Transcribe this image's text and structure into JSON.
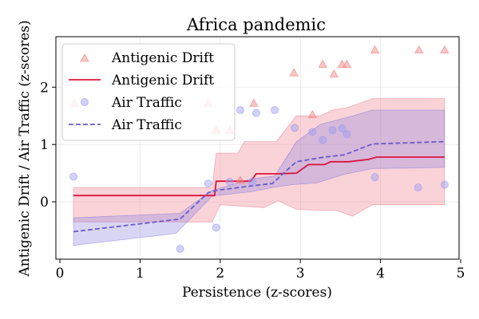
{
  "chart_data": {
    "type": "scatter",
    "title": "Africa pandemic",
    "xlabel": "Persistence (z-scores)",
    "ylabel": "Antigenic Drift / Air Traffic (z-scores)",
    "xlim": [
      -0.05,
      4.98
    ],
    "ylim": [
      -1.0,
      2.88
    ],
    "xticks": [
      "0",
      "1",
      "2",
      "3",
      "4",
      "5"
    ],
    "yticks": [
      "0",
      "1",
      "2"
    ],
    "grid": true,
    "legend_position": "top-left",
    "legend": [
      "Antigenic Drift",
      "Antigenic Drift",
      "Air Traffic",
      "Air Traffic"
    ],
    "colors": {
      "drift": "#dc143c",
      "traffic": "#6a5acd"
    },
    "series": [
      {
        "name": "Antigenic Drift",
        "kind": "scatter",
        "marker": "triangle",
        "color": "#f08080",
        "points": [
          [
            0.18,
            1.72
          ],
          [
            1.85,
            1.72
          ],
          [
            1.95,
            1.25
          ],
          [
            2.12,
            1.25
          ],
          [
            2.25,
            0.38
          ],
          [
            2.42,
            1.72
          ],
          [
            2.92,
            2.25
          ],
          [
            3.15,
            1.52
          ],
          [
            3.28,
            2.4
          ],
          [
            3.42,
            2.23
          ],
          [
            3.52,
            2.4
          ],
          [
            3.58,
            2.4
          ],
          [
            3.93,
            2.65
          ],
          [
            4.48,
            2.65
          ],
          [
            4.8,
            2.65
          ]
        ]
      },
      {
        "name": "Antigenic Drift",
        "kind": "line",
        "style": "solid",
        "color": "#dc143c",
        "points": [
          [
            0.17,
            0.11
          ],
          [
            1.93,
            0.11
          ],
          [
            1.95,
            0.36
          ],
          [
            2.38,
            0.36
          ],
          [
            2.45,
            0.49
          ],
          [
            2.72,
            0.49
          ],
          [
            2.95,
            0.5
          ],
          [
            3.1,
            0.65
          ],
          [
            3.3,
            0.65
          ],
          [
            3.38,
            0.7
          ],
          [
            3.6,
            0.7
          ],
          [
            3.85,
            0.74
          ],
          [
            3.95,
            0.78
          ],
          [
            4.8,
            0.78
          ]
        ],
        "band_upper": [
          [
            0.17,
            0.25
          ],
          [
            1.9,
            0.25
          ],
          [
            1.95,
            0.85
          ],
          [
            2.22,
            0.85
          ],
          [
            2.3,
            1.05
          ],
          [
            2.7,
            1.05
          ],
          [
            2.95,
            1.5
          ],
          [
            3.25,
            1.5
          ],
          [
            3.4,
            1.6
          ],
          [
            3.6,
            1.65
          ],
          [
            3.9,
            1.8
          ],
          [
            4.8,
            1.8
          ]
        ],
        "band_lower": [
          [
            0.17,
            -0.35
          ],
          [
            1.9,
            -0.35
          ],
          [
            2.0,
            -0.05
          ],
          [
            2.3,
            -0.08
          ],
          [
            2.55,
            -0.1
          ],
          [
            2.72,
            0.02
          ],
          [
            2.95,
            -0.13
          ],
          [
            3.25,
            -0.15
          ],
          [
            3.45,
            -0.15
          ],
          [
            3.65,
            -0.25
          ],
          [
            3.9,
            -0.05
          ],
          [
            4.8,
            -0.05
          ]
        ]
      },
      {
        "name": "Air Traffic",
        "kind": "scatter",
        "marker": "circle",
        "color": "#9b9bf0",
        "points": [
          [
            0.17,
            0.44
          ],
          [
            1.5,
            -0.82
          ],
          [
            1.85,
            0.32
          ],
          [
            1.95,
            -0.45
          ],
          [
            2.12,
            0.35
          ],
          [
            2.25,
            1.6
          ],
          [
            2.4,
            0.35
          ],
          [
            2.45,
            1.55
          ],
          [
            2.68,
            1.6
          ],
          [
            2.93,
            1.29
          ],
          [
            3.15,
            1.22
          ],
          [
            3.28,
            1.08
          ],
          [
            3.4,
            1.25
          ],
          [
            3.52,
            1.28
          ],
          [
            3.58,
            1.18
          ],
          [
            3.93,
            0.43
          ],
          [
            4.47,
            0.25
          ],
          [
            4.8,
            0.3
          ]
        ]
      },
      {
        "name": "Air Traffic",
        "kind": "line",
        "style": "dashed",
        "color": "#6a5acd",
        "points": [
          [
            0.17,
            -0.52
          ],
          [
            1.5,
            -0.3
          ],
          [
            1.85,
            0.16
          ],
          [
            1.95,
            0.2
          ],
          [
            2.4,
            0.28
          ],
          [
            2.65,
            0.32
          ],
          [
            2.95,
            0.7
          ],
          [
            3.3,
            0.78
          ],
          [
            3.55,
            0.82
          ],
          [
            3.9,
            1.01
          ],
          [
            4.8,
            1.05
          ]
        ],
        "band_upper": [
          [
            0.17,
            -0.28
          ],
          [
            1.5,
            -0.2
          ],
          [
            1.9,
            0.2
          ],
          [
            2.4,
            0.4
          ],
          [
            2.68,
            0.45
          ],
          [
            2.95,
            1.05
          ],
          [
            3.25,
            1.35
          ],
          [
            3.6,
            1.48
          ],
          [
            3.9,
            1.6
          ],
          [
            4.8,
            1.6
          ]
        ],
        "band_lower": [
          [
            0.17,
            -0.76
          ],
          [
            1.45,
            -0.55
          ],
          [
            1.9,
            0.1
          ],
          [
            2.4,
            0.18
          ],
          [
            2.65,
            0.25
          ],
          [
            2.9,
            0.3
          ],
          [
            3.2,
            0.33
          ],
          [
            3.55,
            0.48
          ],
          [
            3.9,
            0.58
          ],
          [
            4.8,
            0.6
          ]
        ]
      }
    ]
  }
}
